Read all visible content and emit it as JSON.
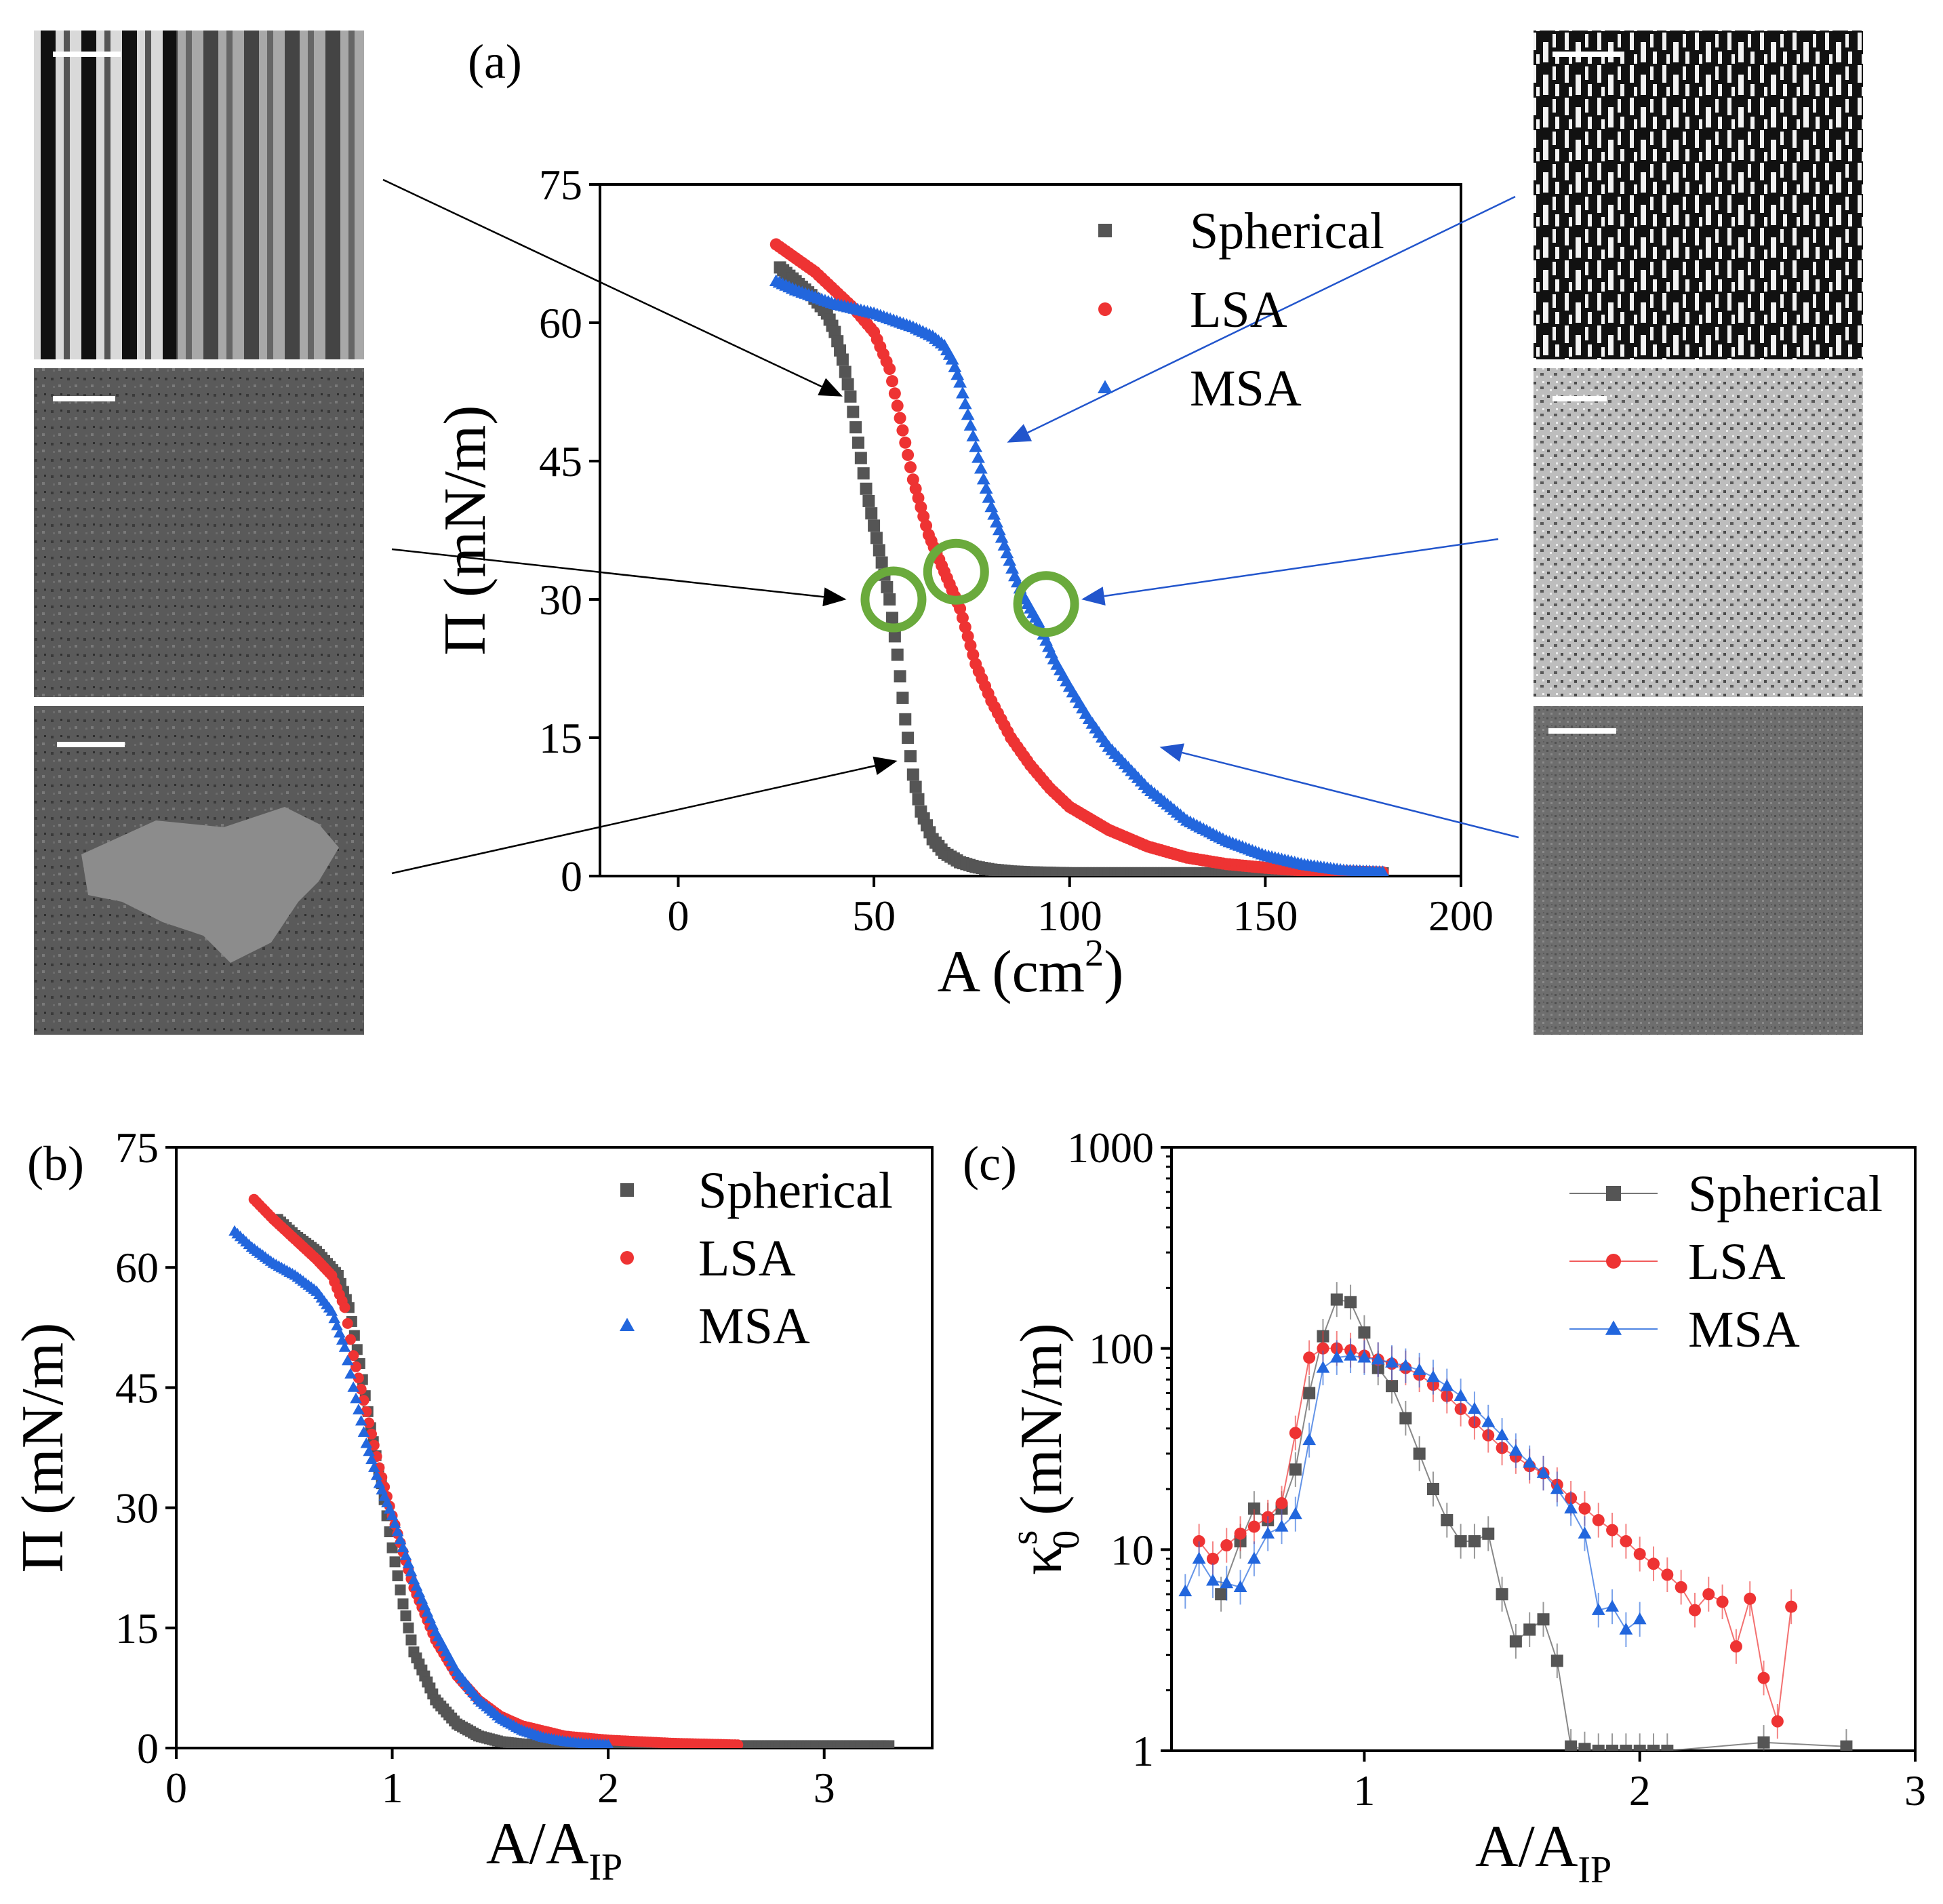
{
  "chart_data": [
    {
      "panel": "a",
      "panel_label": "(a)",
      "type": "scatter",
      "xlabel": "A (cm",
      "xlabel_sup": "2",
      "xlabel_close": ")",
      "ylabel": "Π (mN/m)",
      "xlim": [
        -20,
        200
      ],
      "ylim": [
        0,
        75
      ],
      "xticks": [
        0,
        50,
        100,
        150,
        200
      ],
      "yticks": [
        0,
        15,
        30,
        45,
        60,
        75
      ],
      "legend_position": "top-right",
      "series": [
        {
          "name": "Spherical",
          "color": "#555555",
          "marker": "square",
          "x": [
            26,
            30,
            34,
            38,
            40,
            42,
            44,
            46,
            48,
            50,
            52,
            54,
            56,
            58,
            60,
            62,
            65,
            68,
            72,
            76,
            80,
            85,
            90,
            95,
            100,
            120,
            150,
            180
          ],
          "y": [
            66,
            64.5,
            63,
            61,
            59,
            56,
            52,
            47,
            42,
            38,
            34,
            30,
            24,
            17,
            11,
            7,
            4,
            2.5,
            1.5,
            1,
            0.7,
            0.5,
            0.4,
            0.35,
            0.3,
            0.3,
            0.3,
            0.3
          ]
        },
        {
          "name": "LSA",
          "color": "#ee3333",
          "marker": "circle",
          "x": [
            25,
            30,
            35,
            40,
            45,
            50,
            54,
            56,
            58,
            60,
            62,
            64,
            66,
            68,
            70,
            72,
            74,
            76,
            80,
            85,
            90,
            95,
            100,
            110,
            120,
            130,
            140,
            150,
            160,
            170,
            180
          ],
          "y": [
            68.5,
            67,
            65.5,
            63.5,
            61.5,
            59,
            55,
            51,
            47,
            43,
            40,
            37,
            35,
            33,
            31,
            29,
            26,
            23,
            19,
            15,
            12,
            9.5,
            7.5,
            5,
            3.2,
            2,
            1.3,
            0.9,
            0.6,
            0.5,
            0.4
          ]
        },
        {
          "name": "MSA",
          "color": "#2266dd",
          "marker": "triangle",
          "x": [
            25,
            30,
            40,
            50,
            60,
            65,
            68,
            70,
            72,
            74,
            76,
            78,
            80,
            82,
            84,
            86,
            88,
            90,
            92,
            94,
            96,
            100,
            105,
            110,
            120,
            130,
            140,
            150,
            160,
            170,
            180
          ],
          "y": [
            64.5,
            63.5,
            62,
            61,
            59.5,
            58.5,
            57.5,
            56,
            53.5,
            50,
            46.5,
            43,
            40,
            37.5,
            35,
            32.5,
            30.5,
            29,
            27.5,
            25.5,
            23.5,
            20.5,
            17,
            14,
            9.5,
            6,
            3.8,
            2.2,
            1.2,
            0.6,
            0.4
          ]
        }
      ],
      "highlight_circles": [
        {
          "x": 55,
          "y": 30,
          "color": "#6aaa3c"
        },
        {
          "x": 71,
          "y": 33,
          "color": "#6aaa3c"
        },
        {
          "x": 94,
          "y": 29.5,
          "color": "#6aaa3c"
        }
      ],
      "arrows": [
        {
          "target_x": 42,
          "target_y": 52,
          "color": "#000000",
          "from": "left-top"
        },
        {
          "target_x": 43,
          "target_y": 30,
          "color": "#000000",
          "from": "left-middle"
        },
        {
          "target_x": 56,
          "target_y": 12.5,
          "color": "#000000",
          "from": "left-bottom"
        },
        {
          "target_x": 84,
          "target_y": 47,
          "color": "#2255cc",
          "from": "right-top"
        },
        {
          "target_x": 103,
          "target_y": 30,
          "color": "#2255cc",
          "from": "right-middle"
        },
        {
          "target_x": 123,
          "target_y": 14,
          "color": "#2255cc",
          "from": "right-bottom"
        }
      ],
      "micrographs": [
        {
          "side": "left",
          "pattern": "stripes"
        },
        {
          "side": "left",
          "pattern": "fine-grain"
        },
        {
          "side": "left",
          "pattern": "domain"
        },
        {
          "side": "right",
          "pattern": "coarse-bw"
        },
        {
          "side": "right",
          "pattern": "speckle"
        },
        {
          "side": "right",
          "pattern": "fine-noise"
        }
      ]
    },
    {
      "panel": "b",
      "panel_label": "(b)",
      "type": "scatter",
      "xlabel": "A/A",
      "xlabel_sub": "IP",
      "ylabel": "Π (mN/m)",
      "xlim": [
        0,
        3.5
      ],
      "ylim": [
        0,
        75
      ],
      "xticks": [
        0,
        1,
        2,
        3
      ],
      "yticks": [
        0,
        15,
        30,
        45,
        60,
        75
      ],
      "legend_position": "top-right",
      "series": [
        {
          "name": "Spherical",
          "color": "#555555",
          "marker": "square",
          "x": [
            0.47,
            0.55,
            0.65,
            0.75,
            0.8,
            0.85,
            0.9,
            0.95,
            1.0,
            1.05,
            1.1,
            1.2,
            1.3,
            1.4,
            1.5,
            1.6,
            1.8,
            2.0,
            2.5,
            3.0,
            3.3
          ],
          "y": [
            66,
            64,
            62,
            59,
            55,
            48,
            40,
            33,
            25,
            18,
            12,
            6,
            3,
            1.5,
            0.8,
            0.5,
            0.35,
            0.3,
            0.3,
            0.3,
            0.3
          ]
        },
        {
          "name": "LSA",
          "color": "#ee3333",
          "marker": "circle",
          "x": [
            0.36,
            0.45,
            0.55,
            0.65,
            0.72,
            0.78,
            0.82,
            0.88,
            0.94,
            1.0,
            1.05,
            1.1,
            1.2,
            1.3,
            1.4,
            1.5,
            1.6,
            1.8,
            2.0,
            2.3,
            2.6
          ],
          "y": [
            68.5,
            66,
            63.5,
            61,
            59,
            55,
            49,
            42,
            35,
            29,
            24.5,
            20,
            13.5,
            9,
            6,
            4,
            2.8,
            1.5,
            1,
            0.6,
            0.4
          ]
        },
        {
          "name": "MSA",
          "color": "#2266dd",
          "marker": "triangle",
          "x": [
            0.27,
            0.35,
            0.45,
            0.55,
            0.65,
            0.72,
            0.78,
            0.82,
            0.88,
            0.94,
            1.0,
            1.05,
            1.1,
            1.2,
            1.3,
            1.4,
            1.5,
            1.6,
            1.7,
            1.8,
            1.9,
            2.0
          ],
          "y": [
            64.5,
            62.5,
            60.5,
            59,
            57,
            54.5,
            50,
            45,
            38,
            33,
            29,
            25,
            21,
            14.5,
            9.5,
            6,
            3.7,
            2.2,
            1.3,
            0.8,
            0.5,
            0.4
          ]
        }
      ]
    },
    {
      "panel": "c",
      "panel_label": "(c)",
      "type": "line",
      "xlabel": "A/A",
      "xlabel_sub": "IP",
      "ylabel": "κ",
      "ylabel_sub": "0",
      "ylabel_sup": "s",
      "ylabel_rest": " (mN/m)",
      "yscale": "log",
      "xlim": [
        0.3,
        3.0
      ],
      "ylim": [
        1,
        1000
      ],
      "xticks": [
        1,
        2,
        3
      ],
      "yticks": [
        1,
        10,
        100,
        1000
      ],
      "legend_position": "top-right",
      "series": [
        {
          "name": "Spherical",
          "color": "#555555",
          "marker": "square",
          "x": [
            0.48,
            0.55,
            0.6,
            0.65,
            0.7,
            0.75,
            0.8,
            0.85,
            0.9,
            0.95,
            1.0,
            1.05,
            1.1,
            1.15,
            1.2,
            1.25,
            1.3,
            1.35,
            1.4,
            1.45,
            1.5,
            1.55,
            1.6,
            1.65,
            1.7,
            1.75,
            1.8,
            1.85,
            1.9,
            1.95,
            2.0,
            2.05,
            2.1,
            2.45,
            2.75
          ],
          "y": [
            6,
            11,
            16,
            14,
            16,
            25,
            60,
            115,
            175,
            170,
            120,
            80,
            65,
            45,
            30,
            20,
            14,
            11,
            11,
            12,
            6,
            3.5,
            4,
            4.5,
            2.8,
            1.05,
            1.02,
            1.0,
            1.0,
            1.0,
            1.0,
            1.0,
            1.0,
            1.1,
            1.05
          ]
        },
        {
          "name": "LSA",
          "color": "#ee3333",
          "marker": "circle",
          "x": [
            0.4,
            0.45,
            0.5,
            0.55,
            0.6,
            0.65,
            0.7,
            0.75,
            0.8,
            0.85,
            0.9,
            0.95,
            1.0,
            1.05,
            1.1,
            1.15,
            1.2,
            1.25,
            1.3,
            1.35,
            1.4,
            1.45,
            1.5,
            1.55,
            1.6,
            1.65,
            1.7,
            1.75,
            1.8,
            1.85,
            1.9,
            1.95,
            2.0,
            2.05,
            2.1,
            2.15,
            2.2,
            2.25,
            2.3,
            2.35,
            2.4,
            2.45,
            2.5,
            2.55
          ],
          "y": [
            11,
            9,
            10.5,
            12,
            13,
            14.5,
            17,
            38,
            90,
            100,
            100,
            98,
            92,
            88,
            84,
            80,
            74,
            66,
            58,
            50,
            43,
            37,
            32,
            29,
            26,
            24,
            21,
            18,
            16,
            14,
            12.5,
            11,
            9.5,
            8.5,
            7.5,
            6.5,
            5,
            6,
            5.5,
            3.3,
            5.7,
            2.3,
            1.4,
            5.2
          ]
        },
        {
          "name": "MSA",
          "color": "#2266dd",
          "marker": "triangle",
          "x": [
            0.35,
            0.4,
            0.45,
            0.5,
            0.55,
            0.6,
            0.65,
            0.7,
            0.75,
            0.8,
            0.85,
            0.9,
            0.95,
            1.0,
            1.05,
            1.1,
            1.15,
            1.2,
            1.25,
            1.3,
            1.35,
            1.4,
            1.45,
            1.5,
            1.55,
            1.6,
            1.65,
            1.7,
            1.75,
            1.8,
            1.85,
            1.9,
            1.95,
            2.0
          ],
          "y": [
            6.2,
            9,
            7,
            6.8,
            6.5,
            9,
            12,
            13,
            15,
            35,
            80,
            90,
            92,
            90,
            88,
            85,
            82,
            78,
            72,
            65,
            58,
            50,
            43,
            37,
            31,
            27,
            24,
            20,
            16,
            12,
            5,
            5.2,
            4,
            4.5
          ]
        }
      ]
    }
  ]
}
